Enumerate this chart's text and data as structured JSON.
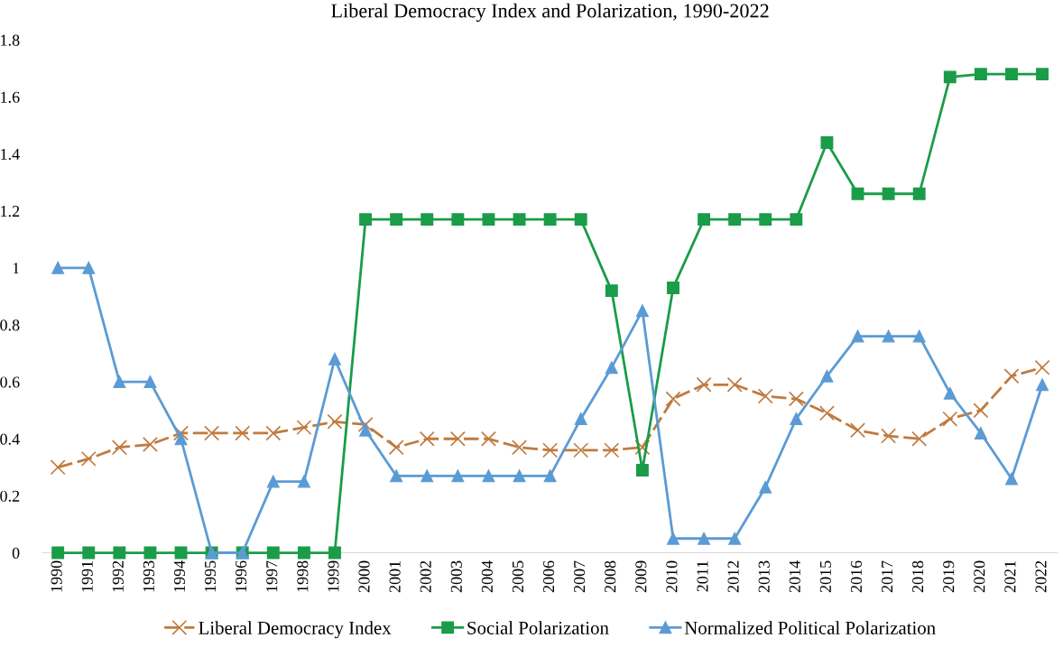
{
  "chart_data": {
    "type": "line",
    "title": "Liberal Democracy Index and Polarization, 1990-2022",
    "categories": [
      "1990",
      "1991",
      "1992",
      "1993",
      "1994",
      "1995",
      "1996",
      "1997",
      "1998",
      "1999",
      "2000",
      "2001",
      "2002",
      "2003",
      "2004",
      "2005",
      "2006",
      "2007",
      "2008",
      "2009",
      "2010",
      "2011",
      "2012",
      "2013",
      "2014",
      "2015",
      "2016",
      "2017",
      "2018",
      "2019",
      "2020",
      "2021",
      "2022"
    ],
    "series": [
      {
        "name": "Liberal Democracy Index",
        "color": "#c07a3e",
        "marker": "cross",
        "line_style": "dashed",
        "values": [
          0.3,
          0.33,
          0.37,
          0.38,
          0.42,
          0.42,
          0.42,
          0.42,
          0.44,
          0.46,
          0.45,
          0.37,
          0.4,
          0.4,
          0.4,
          0.37,
          0.36,
          0.36,
          0.36,
          0.37,
          0.54,
          0.59,
          0.59,
          0.55,
          0.54,
          0.49,
          0.43,
          0.41,
          0.4,
          0.47,
          0.5,
          0.62,
          0.65
        ]
      },
      {
        "name": "Social Polarization",
        "color": "#1a9c48",
        "marker": "square",
        "line_style": "solid",
        "values": [
          0,
          0,
          0,
          0,
          0,
          0,
          0,
          0,
          0,
          0,
          1.17,
          1.17,
          1.17,
          1.17,
          1.17,
          1.17,
          1.17,
          1.17,
          0.92,
          0.29,
          0.93,
          1.17,
          1.17,
          1.17,
          1.17,
          1.44,
          1.26,
          1.26,
          1.26,
          1.67,
          1.68,
          1.68,
          1.68
        ]
      },
      {
        "name": "Normalized Political Polarization",
        "color": "#5b9bd5",
        "marker": "triangle",
        "line_style": "solid",
        "values": [
          1.0,
          1.0,
          0.6,
          0.6,
          0.4,
          0,
          0,
          0.25,
          0.25,
          0.68,
          0.43,
          0.27,
          0.27,
          0.27,
          0.27,
          0.27,
          0.27,
          0.47,
          0.65,
          0.85,
          0.05,
          0.05,
          0.05,
          0.23,
          0.47,
          0.62,
          0.76,
          0.76,
          0.76,
          0.56,
          0.42,
          0.26,
          0.59
        ]
      }
    ],
    "ylim": [
      0,
      1.8
    ],
    "yticks": [
      0,
      0.2,
      0.4,
      0.6,
      0.8,
      1,
      1.2,
      1.4,
      1.6,
      1.8
    ],
    "grid": false,
    "legend": "bottom"
  }
}
